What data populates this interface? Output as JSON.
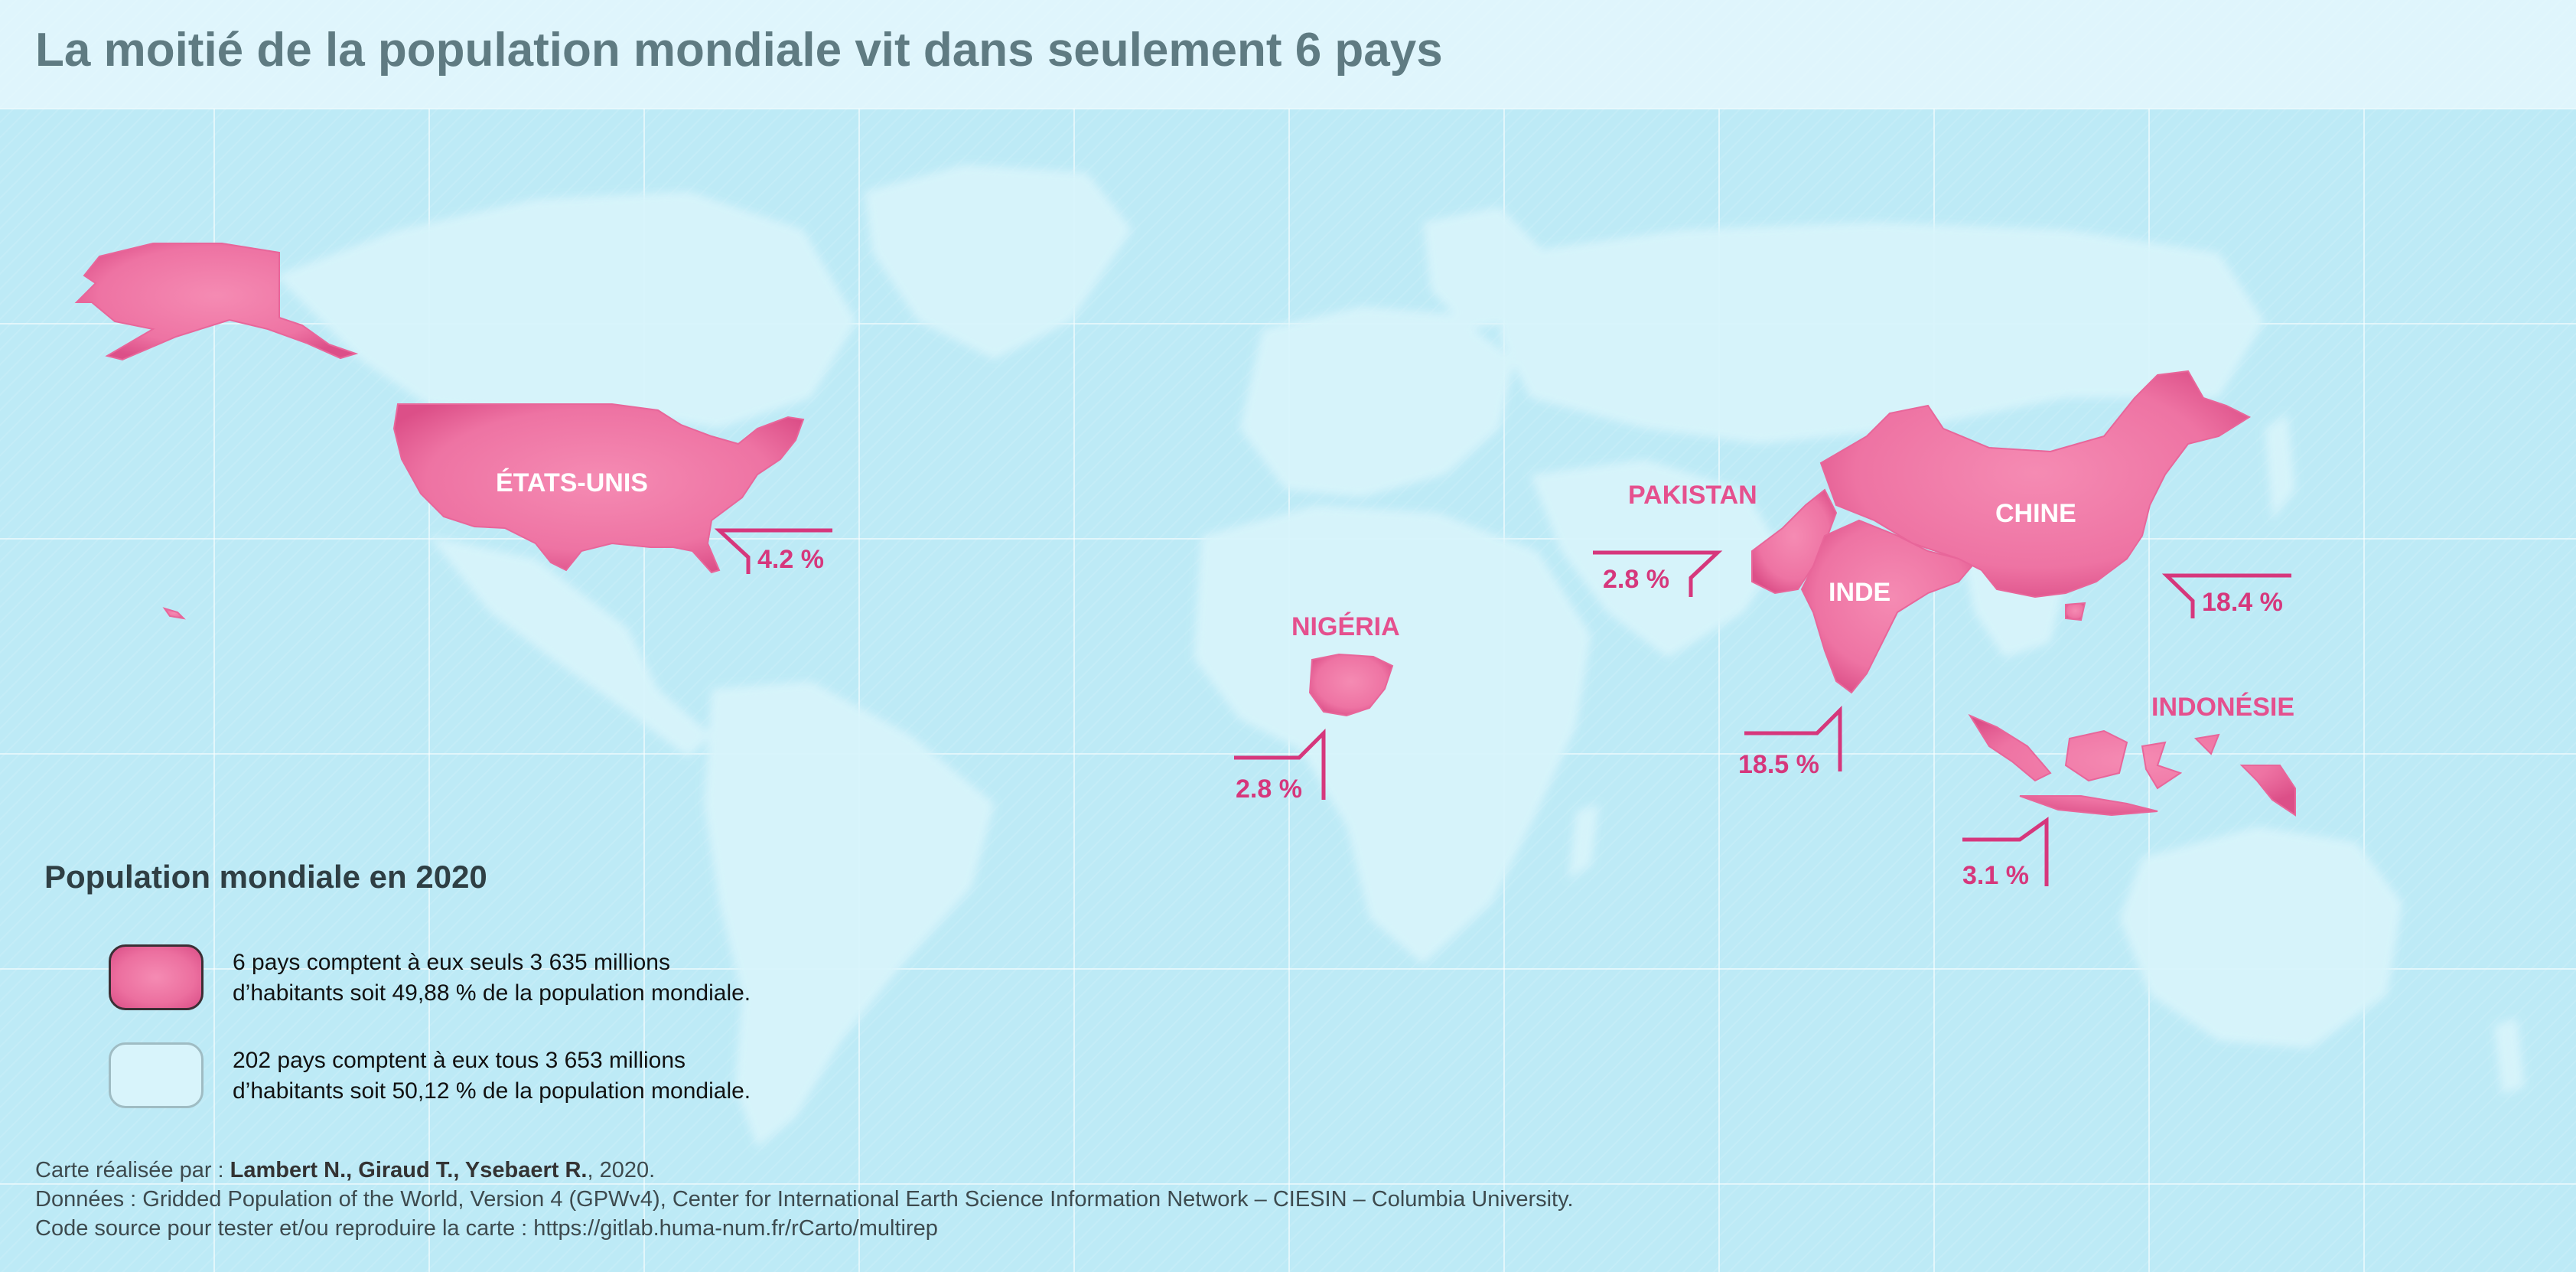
{
  "title": "La moitié de la population mondiale vit dans seulement 6 pays",
  "colors": {
    "ocean": "#bdeaf6",
    "land_other": "#d8f4fb",
    "land_top6": "#ef7aa8",
    "label_pink": "#e5508e",
    "percent_pink": "#d6377c",
    "title_gray": "#5f7b82"
  },
  "countries": [
    {
      "id": "usa",
      "name": "ÉTATS-UNIS",
      "share": "4.2 %"
    },
    {
      "id": "pakistan",
      "name": "PAKISTAN",
      "share": "2.8 %"
    },
    {
      "id": "china",
      "name": "CHINE",
      "share": "18.4 %"
    },
    {
      "id": "india",
      "name": "INDE",
      "share": "18.5 %"
    },
    {
      "id": "nigeria",
      "name": "NIGÉRIA",
      "share": "2.8 %"
    },
    {
      "id": "indonesia",
      "name": "INDONÉSIE",
      "share": "3.1 %"
    }
  ],
  "legend": {
    "title": "Population mondiale en 2020",
    "items": [
      {
        "line1": "6 pays comptent à eux seuls 3 635 millions",
        "line2": "d’habitants soit 49,88 % de la population mondiale."
      },
      {
        "line1": "202 pays comptent à eux tous 3 653 millions",
        "line2": "d’habitants soit 50,12 % de la population mondiale."
      }
    ]
  },
  "credits": {
    "author_prefix": "Carte réalisée par : ",
    "authors": "Lambert N., Giraud T., Ysebaert R.",
    "author_suffix": ", 2020.",
    "data": "Données : Gridded Population of the World, Version 4 (GPWv4), Center for International Earth Science Information Network – CIESIN – Columbia University.",
    "source": "Code source pour tester et/ou reproduire la carte : https://gitlab.huma-num.fr/rCarto/multirep"
  }
}
